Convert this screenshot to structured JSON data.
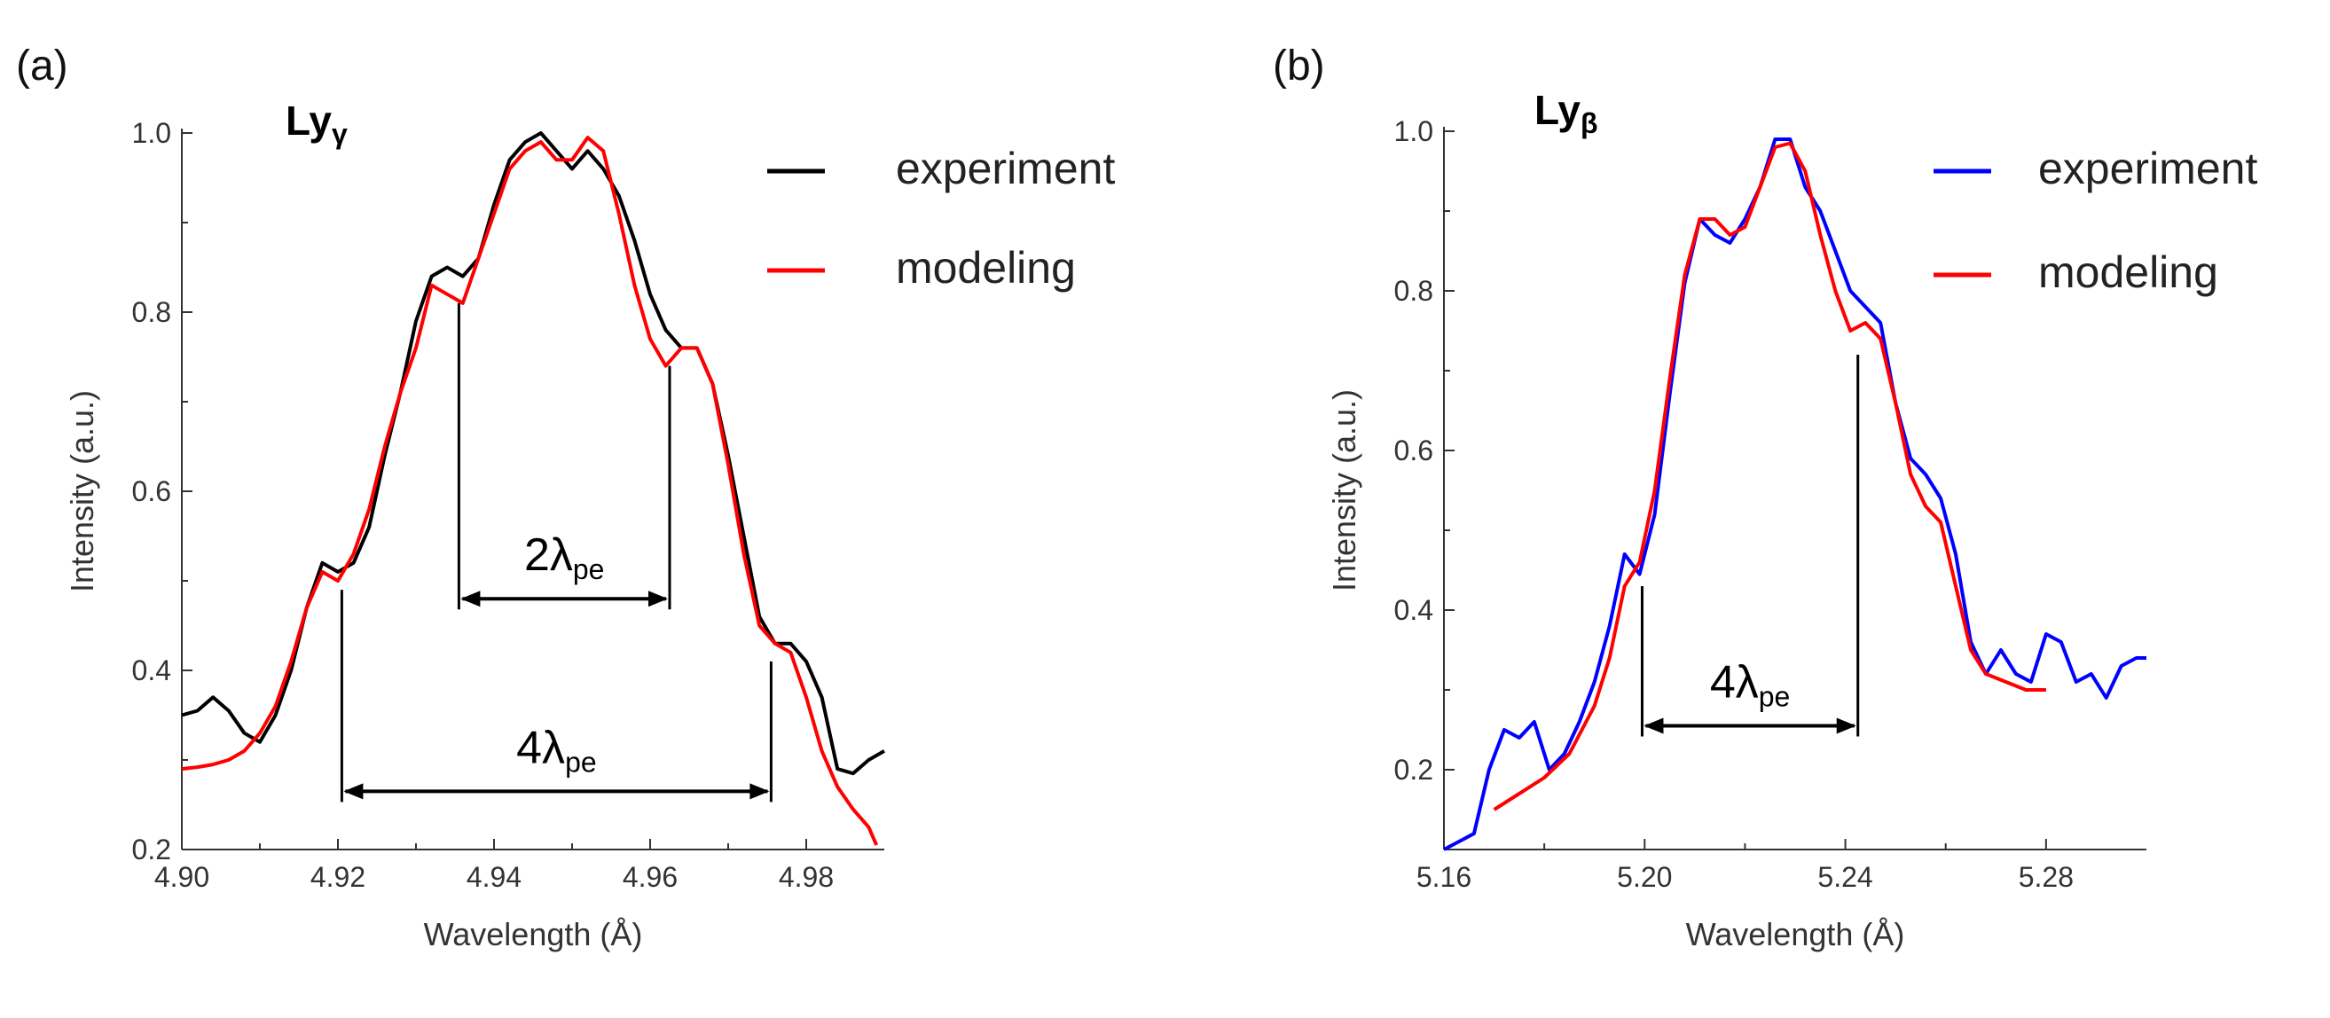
{
  "chart_data": [
    {
      "type": "line",
      "panel_label": "(a)",
      "line_name": {
        "base": "Ly",
        "sub": "γ"
      },
      "xlabel": "Wavelength (Å)",
      "ylabel": "Intensity (a.u.)",
      "xlim": [
        4.9,
        4.99
      ],
      "ylim": [
        0.2,
        1.0
      ],
      "xticks": [
        4.9,
        4.92,
        4.94,
        4.96,
        4.98
      ],
      "xtick_labels": [
        "4.90",
        "4.92",
        "4.94",
        "4.96",
        "4.98"
      ],
      "yticks": [
        0.2,
        0.4,
        0.6,
        0.8,
        1.0
      ],
      "ytick_labels": [
        "0.2",
        "0.4",
        "0.6",
        "0.8",
        "1.0"
      ],
      "legend": [
        "experiment",
        "modeling"
      ],
      "series": [
        {
          "name": "experiment",
          "color": "#000000",
          "points": [
            [
              4.9,
              0.35
            ],
            [
              4.902,
              0.355
            ],
            [
              4.904,
              0.37
            ],
            [
              4.906,
              0.355
            ],
            [
              4.908,
              0.33
            ],
            [
              4.91,
              0.32
            ],
            [
              4.912,
              0.35
            ],
            [
              4.914,
              0.4
            ],
            [
              4.916,
              0.47
            ],
            [
              4.918,
              0.52
            ],
            [
              4.92,
              0.51
            ],
            [
              4.922,
              0.52
            ],
            [
              4.924,
              0.56
            ],
            [
              4.926,
              0.64
            ],
            [
              4.928,
              0.71
            ],
            [
              4.93,
              0.79
            ],
            [
              4.932,
              0.84
            ],
            [
              4.934,
              0.85
            ],
            [
              4.936,
              0.84
            ],
            [
              4.938,
              0.86
            ],
            [
              4.94,
              0.92
            ],
            [
              4.942,
              0.97
            ],
            [
              4.944,
              0.99
            ],
            [
              4.946,
              1.0
            ],
            [
              4.948,
              0.98
            ],
            [
              4.95,
              0.96
            ],
            [
              4.952,
              0.98
            ],
            [
              4.954,
              0.96
            ],
            [
              4.956,
              0.93
            ],
            [
              4.958,
              0.88
            ],
            [
              4.96,
              0.82
            ],
            [
              4.962,
              0.78
            ],
            [
              4.964,
              0.76
            ],
            [
              4.966,
              0.76
            ],
            [
              4.968,
              0.72
            ],
            [
              4.97,
              0.64
            ],
            [
              4.972,
              0.55
            ],
            [
              4.974,
              0.46
            ],
            [
              4.976,
              0.43
            ],
            [
              4.978,
              0.43
            ],
            [
              4.98,
              0.41
            ],
            [
              4.982,
              0.37
            ],
            [
              4.984,
              0.29
            ],
            [
              4.986,
              0.285
            ],
            [
              4.988,
              0.3
            ],
            [
              4.99,
              0.31
            ]
          ]
        },
        {
          "name": "modeling",
          "color": "#ff0000",
          "points": [
            [
              4.9,
              0.29
            ],
            [
              4.902,
              0.292
            ],
            [
              4.904,
              0.295
            ],
            [
              4.906,
              0.3
            ],
            [
              4.908,
              0.31
            ],
            [
              4.91,
              0.33
            ],
            [
              4.912,
              0.36
            ],
            [
              4.914,
              0.41
            ],
            [
              4.916,
              0.47
            ],
            [
              4.918,
              0.51
            ],
            [
              4.92,
              0.5
            ],
            [
              4.922,
              0.53
            ],
            [
              4.924,
              0.58
            ],
            [
              4.926,
              0.65
            ],
            [
              4.928,
              0.71
            ],
            [
              4.93,
              0.76
            ],
            [
              4.932,
              0.83
            ],
            [
              4.934,
              0.82
            ],
            [
              4.936,
              0.81
            ],
            [
              4.938,
              0.86
            ],
            [
              4.94,
              0.91
            ],
            [
              4.942,
              0.96
            ],
            [
              4.944,
              0.98
            ],
            [
              4.946,
              0.99
            ],
            [
              4.948,
              0.97
            ],
            [
              4.95,
              0.97
            ],
            [
              4.952,
              0.995
            ],
            [
              4.954,
              0.98
            ],
            [
              4.956,
              0.91
            ],
            [
              4.958,
              0.83
            ],
            [
              4.96,
              0.77
            ],
            [
              4.962,
              0.74
            ],
            [
              4.964,
              0.76
            ],
            [
              4.966,
              0.76
            ],
            [
              4.968,
              0.72
            ],
            [
              4.97,
              0.63
            ],
            [
              4.972,
              0.53
            ],
            [
              4.974,
              0.45
            ],
            [
              4.976,
              0.43
            ],
            [
              4.978,
              0.42
            ],
            [
              4.98,
              0.37
            ],
            [
              4.982,
              0.31
            ],
            [
              4.984,
              0.27
            ],
            [
              4.986,
              0.245
            ],
            [
              4.988,
              0.225
            ],
            [
              4.989,
              0.205
            ]
          ]
        }
      ],
      "annotations": [
        {
          "label_base": "2λ",
          "label_sub": "pe",
          "x1": 4.9355,
          "x2": 4.9625,
          "y_arrow": 0.48,
          "y_top1": 0.81,
          "y_top2": 0.74
        },
        {
          "label_base": "4λ",
          "label_sub": "pe",
          "x1": 4.9205,
          "x2": 4.9755,
          "y_arrow": 0.265,
          "y_top1": 0.49,
          "y_top2": 0.41
        }
      ]
    },
    {
      "type": "line",
      "panel_label": "(b)",
      "line_name": {
        "base": "Ly",
        "sub": "β"
      },
      "xlabel": "Wavelength (Å)",
      "ylabel": "Intensity (a.u.)",
      "xlim": [
        5.16,
        5.3
      ],
      "ylim": [
        0.1,
        1.0
      ],
      "xticks": [
        5.16,
        5.2,
        5.24,
        5.28
      ],
      "xtick_labels": [
        "5.16",
        "5.20",
        "5.24",
        "5.28"
      ],
      "yticks": [
        0.2,
        0.4,
        0.6,
        0.8,
        1.0
      ],
      "ytick_labels": [
        "0.2",
        "0.4",
        "0.6",
        "0.8",
        "1.0"
      ],
      "legend": [
        "experiment",
        "modeling"
      ],
      "series": [
        {
          "name": "experiment",
          "color": "#0000ff",
          "points": [
            [
              5.16,
              0.1
            ],
            [
              5.163,
              0.11
            ],
            [
              5.166,
              0.12
            ],
            [
              5.169,
              0.2
            ],
            [
              5.172,
              0.25
            ],
            [
              5.175,
              0.24
            ],
            [
              5.178,
              0.26
            ],
            [
              5.181,
              0.2
            ],
            [
              5.184,
              0.22
            ],
            [
              5.187,
              0.26
            ],
            [
              5.19,
              0.31
            ],
            [
              5.193,
              0.38
            ],
            [
              5.196,
              0.47
            ],
            [
              5.199,
              0.445
            ],
            [
              5.202,
              0.52
            ],
            [
              5.205,
              0.67
            ],
            [
              5.208,
              0.81
            ],
            [
              5.211,
              0.89
            ],
            [
              5.214,
              0.87
            ],
            [
              5.217,
              0.86
            ],
            [
              5.22,
              0.89
            ],
            [
              5.223,
              0.93
            ],
            [
              5.226,
              0.99
            ],
            [
              5.229,
              0.99
            ],
            [
              5.232,
              0.93
            ],
            [
              5.235,
              0.9
            ],
            [
              5.238,
              0.85
            ],
            [
              5.241,
              0.8
            ],
            [
              5.244,
              0.78
            ],
            [
              5.247,
              0.76
            ],
            [
              5.25,
              0.66
            ],
            [
              5.253,
              0.59
            ],
            [
              5.256,
              0.57
            ],
            [
              5.259,
              0.54
            ],
            [
              5.262,
              0.47
            ],
            [
              5.265,
              0.36
            ],
            [
              5.268,
              0.32
            ],
            [
              5.271,
              0.35
            ],
            [
              5.274,
              0.32
            ],
            [
              5.277,
              0.31
            ],
            [
              5.28,
              0.37
            ],
            [
              5.283,
              0.36
            ],
            [
              5.286,
              0.31
            ],
            [
              5.289,
              0.32
            ],
            [
              5.292,
              0.29
            ],
            [
              5.295,
              0.33
            ],
            [
              5.298,
              0.34
            ],
            [
              5.3,
              0.34
            ]
          ]
        },
        {
          "name": "modeling",
          "color": "#ff0000",
          "points": [
            [
              5.17,
              0.15
            ],
            [
              5.175,
              0.17
            ],
            [
              5.18,
              0.19
            ],
            [
              5.185,
              0.22
            ],
            [
              5.19,
              0.28
            ],
            [
              5.193,
              0.34
            ],
            [
              5.196,
              0.43
            ],
            [
              5.199,
              0.46
            ],
            [
              5.202,
              0.55
            ],
            [
              5.205,
              0.69
            ],
            [
              5.208,
              0.82
            ],
            [
              5.211,
              0.89
            ],
            [
              5.214,
              0.89
            ],
            [
              5.217,
              0.87
            ],
            [
              5.22,
              0.88
            ],
            [
              5.223,
              0.93
            ],
            [
              5.226,
              0.98
            ],
            [
              5.229,
              0.985
            ],
            [
              5.232,
              0.95
            ],
            [
              5.235,
              0.87
            ],
            [
              5.238,
              0.8
            ],
            [
              5.241,
              0.75
            ],
            [
              5.244,
              0.76
            ],
            [
              5.247,
              0.74
            ],
            [
              5.25,
              0.66
            ],
            [
              5.253,
              0.57
            ],
            [
              5.256,
              0.53
            ],
            [
              5.259,
              0.51
            ],
            [
              5.262,
              0.43
            ],
            [
              5.265,
              0.35
            ],
            [
              5.268,
              0.32
            ],
            [
              5.272,
              0.31
            ],
            [
              5.276,
              0.3
            ],
            [
              5.28,
              0.3
            ]
          ]
        }
      ],
      "annotations": [
        {
          "label_base": "4λ",
          "label_sub": "pe",
          "x1": 5.1995,
          "x2": 5.2425,
          "y_arrow": 0.255,
          "y_top1": 0.43,
          "y_top2": 0.72
        }
      ]
    }
  ]
}
